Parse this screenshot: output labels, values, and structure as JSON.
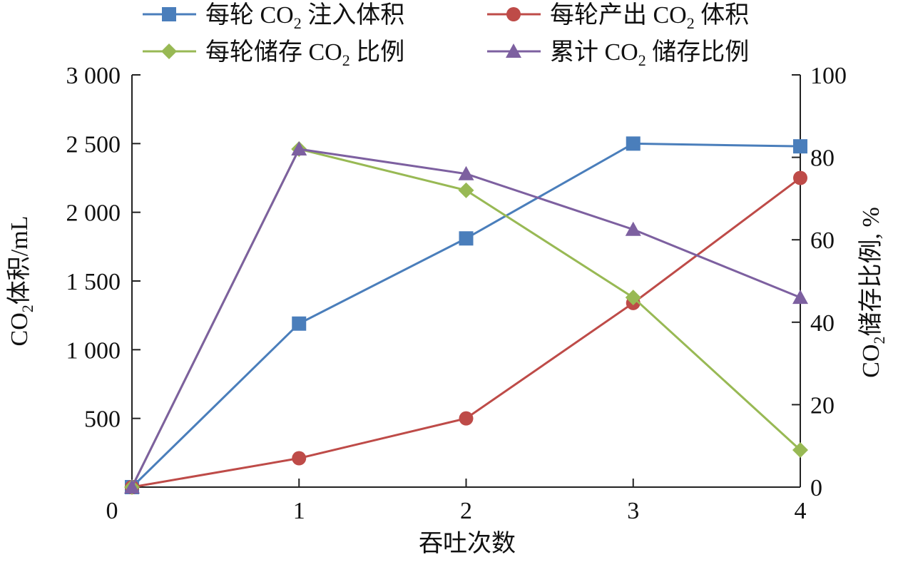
{
  "chart_data": {
    "type": "line",
    "x": [
      0,
      1,
      2,
      3,
      4
    ],
    "xlabel": "吞吐次数",
    "x_ticks": [
      "0",
      "1",
      "2",
      "3",
      "4"
    ],
    "ylabel_left_parts": [
      "CO",
      "2",
      "体积/mL"
    ],
    "ylabel_right_parts": [
      "CO",
      "2",
      "储存比例, %"
    ],
    "y_left": {
      "range": [
        0,
        3000
      ],
      "ticks": [
        500,
        1000,
        1500,
        2000,
        2500,
        3000
      ],
      "tick_labels": [
        "500",
        "1 000",
        "1 500",
        "2 000",
        "2 500",
        "3 000"
      ]
    },
    "y_right": {
      "range": [
        0,
        100
      ],
      "ticks": [
        0,
        20,
        40,
        60,
        80,
        100
      ],
      "tick_labels": [
        "0",
        "20",
        "40",
        "60",
        "80",
        "100"
      ]
    },
    "legend_placement": "top",
    "series": [
      {
        "name_parts": [
          "每轮 CO",
          "2",
          " 注入体积"
        ],
        "axis": "left",
        "color": "#4a7ebb",
        "marker": "square",
        "values": [
          0,
          1190,
          1810,
          2500,
          2480
        ]
      },
      {
        "name_parts": [
          "每轮产出 CO",
          "2",
          " 体积"
        ],
        "axis": "left",
        "color": "#be4b48",
        "marker": "circle",
        "values": [
          0,
          210,
          500,
          1340,
          2250
        ]
      },
      {
        "name_parts": [
          "每轮储存 CO",
          "2",
          " 比例"
        ],
        "axis": "right",
        "color": "#98b954",
        "marker": "diamond",
        "values": [
          0,
          82,
          72,
          46,
          9
        ]
      },
      {
        "name_parts": [
          "累计 CO",
          "2",
          " 储存比例"
        ],
        "axis": "right",
        "color": "#7d60a0",
        "marker": "triangle",
        "values": [
          0,
          82,
          76,
          62.5,
          46
        ]
      }
    ]
  }
}
